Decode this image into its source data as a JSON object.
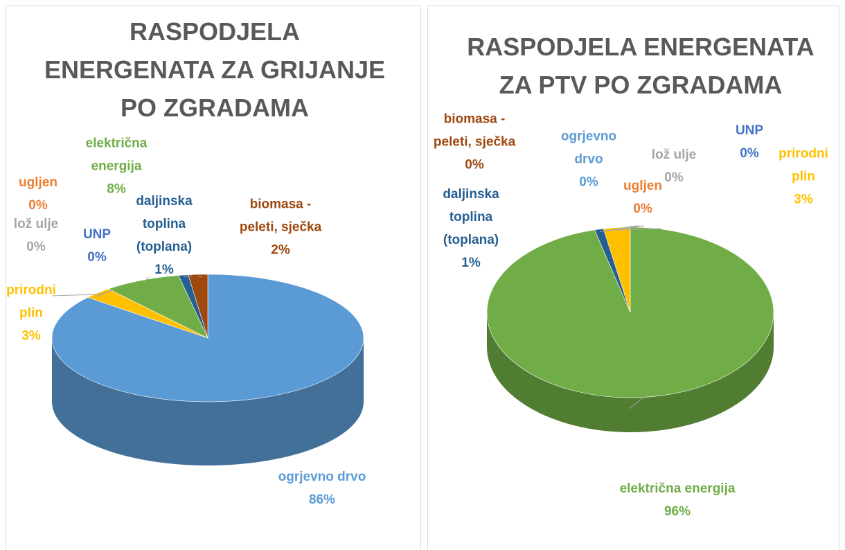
{
  "chart_data": [
    {
      "type": "pie",
      "title": "RASPODJELA ENERGENATA ZA GRIJANJE PO ZGRADAMA",
      "categories": [
        "ogrjevno drvo",
        "prirodni plin",
        "lož ulje",
        "UNP",
        "ugljen",
        "električna energija",
        "daljinska toplina (toplana)",
        "biomasa - peleti, sječka"
      ],
      "values": [
        86,
        3,
        0,
        0,
        0,
        8,
        1,
        2
      ],
      "value_labels": [
        "86%",
        "3%",
        "0%",
        "0%",
        "0%",
        "8%",
        "1%",
        "2%"
      ],
      "colors": [
        "#5b9bd5",
        "#ffc000",
        "#a5a5a5",
        "#4472c4",
        "#ed7d31",
        "#70ad47",
        "#255e91",
        "#9e480e"
      ]
    },
    {
      "type": "pie",
      "title": "RASPODJELA ENERGENATA ZA PTV PO ZGRADAMA",
      "categories": [
        "električna energija",
        "daljinska toplina (toplana)",
        "biomasa - peleti, sječka",
        "ogrjevno drvo",
        "ugljen",
        "lož ulje",
        "UNP",
        "prirodni plin"
      ],
      "values": [
        96,
        1,
        0,
        0,
        0,
        0,
        0,
        3
      ],
      "value_labels": [
        "96%",
        "1%",
        "0%",
        "0%",
        "0%",
        "0%",
        "0%",
        "3%"
      ],
      "colors": [
        "#70ad47",
        "#255e91",
        "#9e480e",
        "#5b9bd5",
        "#ed7d31",
        "#a5a5a5",
        "#4472c4",
        "#ffc000"
      ]
    }
  ]
}
